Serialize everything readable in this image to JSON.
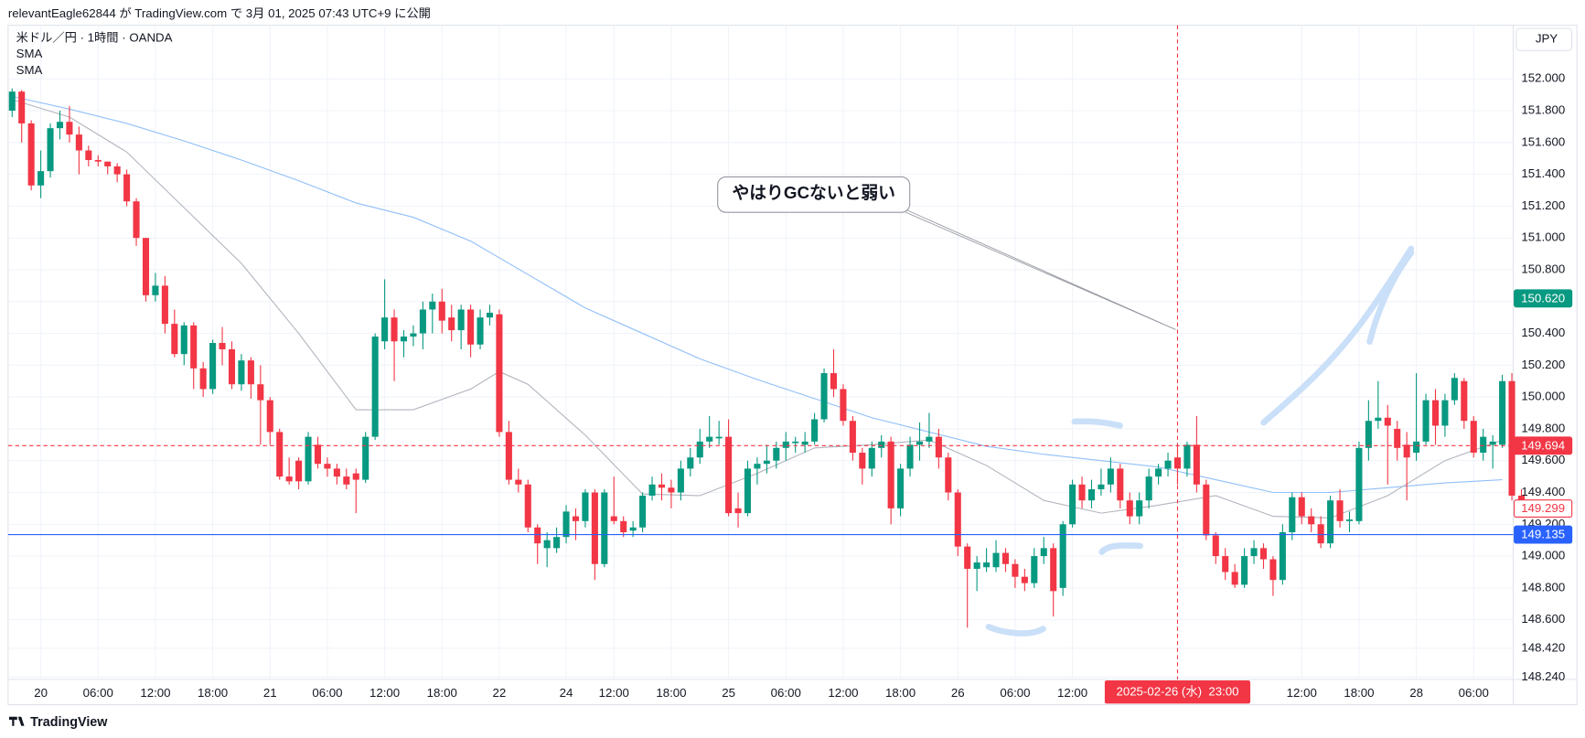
{
  "header": {
    "text": "relevantEagle62844 が TradingView.com で 3月 01, 2025 07:43 UTC+9 に公開"
  },
  "legend": {
    "symbol": "米ドル／円 · 1時間 · OANDA"
  },
  "currency_button": "JPY",
  "footer": {
    "brand": "TradingView"
  },
  "annotation": {
    "text": "やはりGCないと弱い"
  },
  "chart_data": {
    "type": "candlestick",
    "up_color": "#089981",
    "down_color": "#f23645",
    "ylim": [
      148.225,
      152.337
    ],
    "yticks": [
      {
        "value": 152,
        "label": "152.000"
      },
      {
        "value": 151.8,
        "label": "151.800"
      },
      {
        "value": 151.6,
        "label": "151.600"
      },
      {
        "value": 151.4,
        "label": "151.400"
      },
      {
        "value": 151.2,
        "label": "151.200"
      },
      {
        "value": 151,
        "label": "151.000"
      },
      {
        "value": 150.8,
        "label": "150.800"
      },
      {
        "value": 150.6,
        "label": "150.600"
      },
      {
        "value": 150.4,
        "label": "150.400"
      },
      {
        "value": 150.2,
        "label": "150.200"
      },
      {
        "value": 150,
        "label": "150.000"
      },
      {
        "value": 149.8,
        "label": "149.800"
      },
      {
        "value": 149.6,
        "label": "149.600"
      },
      {
        "value": 149.4,
        "label": "149.400"
      },
      {
        "value": 149.2,
        "label": "149.200"
      },
      {
        "value": 149,
        "label": "149.000"
      },
      {
        "value": 148.8,
        "label": "148.800"
      },
      {
        "value": 148.6,
        "label": "148.600"
      },
      {
        "value": 148.42,
        "label": "148.420"
      },
      {
        "value": 148.24,
        "label": "148.240"
      }
    ],
    "grid": true,
    "crosshair_category": 122,
    "categories": [
      null,
      null,
      null,
      "20",
      null,
      null,
      null,
      null,
      null,
      "06:00",
      null,
      null,
      null,
      null,
      null,
      "12:00",
      null,
      null,
      null,
      null,
      null,
      "18:00",
      null,
      null,
      null,
      null,
      null,
      "21",
      null,
      null,
      null,
      null,
      null,
      "06:00",
      null,
      null,
      null,
      null,
      null,
      "12:00",
      null,
      null,
      null,
      null,
      null,
      "18:00",
      null,
      null,
      null,
      null,
      null,
      "22",
      null,
      null,
      null,
      null,
      null,
      null,
      "24",
      null,
      null,
      null,
      null,
      "12:00",
      null,
      null,
      null,
      null,
      null,
      "18:00",
      null,
      null,
      null,
      null,
      null,
      "25",
      null,
      null,
      null,
      null,
      null,
      "06:00",
      null,
      null,
      null,
      null,
      null,
      "12:00",
      null,
      null,
      null,
      null,
      null,
      "18:00",
      null,
      null,
      null,
      null,
      null,
      "26",
      null,
      null,
      null,
      null,
      null,
      "06:00",
      null,
      null,
      null,
      null,
      null,
      "12:00",
      null,
      null,
      null,
      null,
      null,
      null,
      null,
      null,
      null,
      null,
      "2025-02-26 (水)  23:00",
      null,
      null,
      null,
      null,
      null,
      null,
      null,
      null,
      null,
      null,
      null,
      null,
      "12:00",
      null,
      null,
      null,
      null,
      null,
      "18:00",
      null,
      null,
      null,
      null,
      null,
      "28",
      null,
      null,
      null,
      null,
      null,
      "06:00",
      null,
      null,
      null,
      null,
      null
    ],
    "open": [
      151.8,
      151.92,
      151.72,
      151.33,
      151.42,
      151.69,
      151.73,
      151.65,
      151.55,
      151.49,
      151.48,
      151.45,
      151.4,
      151.23,
      151.0,
      150.64,
      150.7,
      150.46,
      150.27,
      150.45,
      150.18,
      150.05,
      150.34,
      150.3,
      150.08,
      150.23,
      150.08,
      149.98,
      149.78,
      149.5,
      149.6,
      149.47,
      149.7,
      149.58,
      149.55,
      149.5,
      149.52,
      149.48,
      149.75,
      150.35,
      150.5,
      150.35,
      150.38,
      150.4,
      150.55,
      150.6,
      150.5,
      150.42,
      150.55,
      150.33,
      150.5,
      150.52,
      149.78,
      149.48,
      149.45,
      149.18,
      149.05,
      149.05,
      149.12,
      149.25,
      149.22,
      149.4,
      148.95,
      149.25,
      149.22,
      149.16,
      149.18,
      149.38,
      149.45,
      149.43,
      149.4,
      149.55,
      149.62,
      149.72,
      149.74,
      149.75,
      149.3,
      149.27,
      149.55,
      149.58,
      149.6,
      149.68,
      149.71,
      149.7,
      149.72,
      149.86,
      150.15,
      150.05,
      149.85,
      149.65,
      149.55,
      149.68,
      149.72,
      149.3,
      149.55,
      149.7,
      149.72,
      149.75,
      149.62,
      149.4,
      149.06,
      148.92,
      148.93,
      148.93,
      149.02,
      148.95,
      148.87,
      148.83,
      149.0,
      149.05,
      148.8,
      149.2,
      149.45,
      149.35,
      149.42,
      149.45,
      149.55,
      149.35,
      149.25,
      149.35,
      149.5,
      149.55,
      149.62,
      149.55,
      149.7,
      149.45,
      149.13,
      149.0,
      148.9,
      148.82,
      149.0,
      149.05,
      148.98,
      148.85,
      149.15,
      149.37,
      149.25,
      149.2,
      149.08,
      149.35,
      149.22,
      149.22,
      149.68,
      149.85,
      149.87,
      149.8,
      149.7,
      149.65,
      149.72,
      149.98,
      149.82,
      149.98,
      150.1,
      149.85,
      149.65,
      149.7,
      149.7,
      150.1,
      149.38
    ],
    "high": [
      151.94,
      151.93,
      151.74,
      151.55,
      151.72,
      151.8,
      151.83,
      151.7,
      151.58,
      151.52,
      151.48,
      151.47,
      151.43,
      151.25,
      151.0,
      150.78,
      150.76,
      150.55,
      150.47,
      150.47,
      150.22,
      150.36,
      150.44,
      150.35,
      150.27,
      150.25,
      150.2,
      150.0,
      149.8,
      149.62,
      149.62,
      149.78,
      149.75,
      149.62,
      149.58,
      149.55,
      149.55,
      149.78,
      150.4,
      150.74,
      150.55,
      150.42,
      150.45,
      150.6,
      150.65,
      150.68,
      150.58,
      150.58,
      150.58,
      150.55,
      150.58,
      150.55,
      149.85,
      149.55,
      149.48,
      149.2,
      149.15,
      149.18,
      149.32,
      149.3,
      149.42,
      149.42,
      149.42,
      149.5,
      149.25,
      149.22,
      149.4,
      149.5,
      149.52,
      149.48,
      149.6,
      149.68,
      149.8,
      149.88,
      149.85,
      149.86,
      149.4,
      149.6,
      149.62,
      149.7,
      149.72,
      149.78,
      149.75,
      149.78,
      149.9,
      150.18,
      150.3,
      150.08,
      149.88,
      149.68,
      149.72,
      149.76,
      149.75,
      149.58,
      149.75,
      149.84,
      149.9,
      149.8,
      149.65,
      149.42,
      149.08,
      149.0,
      149.05,
      149.1,
      149.05,
      148.98,
      148.92,
      149.05,
      149.12,
      149.08,
      149.22,
      149.48,
      149.5,
      149.48,
      149.55,
      149.62,
      149.58,
      149.4,
      149.4,
      149.55,
      149.58,
      149.65,
      149.7,
      149.72,
      149.88,
      149.48,
      149.15,
      149.05,
      148.95,
      149.05,
      149.1,
      149.08,
      149.0,
      149.2,
      149.4,
      149.4,
      149.3,
      149.25,
      149.38,
      149.42,
      149.28,
      149.72,
      149.98,
      150.1,
      149.95,
      149.85,
      149.78,
      150.15,
      150.02,
      150.05,
      150.02,
      150.15,
      150.12,
      149.88,
      149.8,
      149.76,
      150.14,
      150.15,
      149.42
    ],
    "low": [
      151.76,
      151.6,
      151.3,
      151.25,
      151.38,
      151.62,
      151.6,
      151.4,
      151.45,
      151.45,
      151.4,
      151.35,
      151.2,
      150.95,
      150.6,
      150.6,
      150.4,
      150.25,
      150.2,
      150.05,
      150.0,
      150.02,
      150.2,
      150.05,
      150.04,
      149.99,
      149.7,
      149.7,
      149.48,
      149.45,
      149.42,
      149.45,
      149.55,
      149.5,
      149.45,
      149.42,
      149.27,
      149.46,
      149.73,
      150.3,
      150.1,
      150.25,
      150.32,
      150.3,
      150.4,
      150.4,
      150.35,
      150.3,
      150.25,
      150.3,
      150.45,
      149.75,
      149.45,
      149.4,
      149.15,
      148.95,
      148.93,
      149.02,
      149.08,
      149.1,
      149.18,
      148.85,
      148.93,
      149.2,
      149.12,
      149.12,
      149.15,
      149.35,
      149.35,
      149.3,
      149.35,
      149.5,
      149.58,
      149.68,
      149.7,
      149.25,
      149.18,
      149.25,
      149.45,
      149.52,
      149.55,
      149.6,
      149.65,
      149.65,
      149.7,
      149.84,
      150.0,
      149.82,
      149.6,
      149.45,
      149.5,
      149.62,
      149.2,
      149.25,
      149.5,
      149.6,
      149.68,
      149.55,
      149.35,
      149.0,
      148.55,
      148.78,
      148.9,
      148.9,
      148.9,
      148.8,
      148.78,
      148.8,
      148.95,
      148.62,
      148.75,
      149.18,
      149.3,
      149.3,
      149.38,
      149.4,
      149.3,
      149.2,
      149.2,
      149.3,
      149.45,
      149.5,
      149.45,
      149.5,
      149.4,
      149.1,
      148.95,
      148.85,
      148.8,
      148.8,
      148.95,
      148.92,
      148.75,
      148.82,
      149.1,
      149.2,
      149.15,
      149.05,
      149.05,
      149.18,
      149.15,
      149.2,
      149.6,
      149.8,
      149.45,
      149.6,
      149.35,
      149.6,
      149.7,
      149.7,
      149.75,
      149.95,
      149.8,
      149.62,
      149.6,
      149.55,
      149.68,
      149.35,
      149.28
    ],
    "close": [
      151.92,
      151.72,
      151.33,
      151.42,
      151.69,
      151.73,
      151.65,
      151.55,
      151.49,
      151.48,
      151.45,
      151.4,
      151.23,
      151.0,
      150.64,
      150.7,
      150.46,
      150.27,
      150.45,
      150.18,
      150.05,
      150.34,
      150.3,
      150.08,
      150.23,
      150.08,
      149.98,
      149.78,
      149.5,
      149.47,
      149.47,
      149.75,
      149.58,
      149.55,
      149.5,
      149.45,
      149.48,
      149.75,
      150.38,
      150.5,
      150.35,
      150.38,
      150.4,
      150.55,
      150.6,
      150.48,
      150.42,
      150.55,
      150.33,
      150.5,
      150.53,
      149.78,
      149.48,
      149.45,
      149.18,
      149.08,
      149.1,
      149.12,
      149.28,
      149.22,
      149.4,
      148.95,
      149.4,
      149.22,
      149.15,
      149.18,
      149.38,
      149.45,
      149.43,
      149.4,
      149.55,
      149.62,
      149.72,
      149.75,
      149.75,
      149.27,
      149.27,
      149.55,
      149.58,
      149.6,
      149.68,
      149.72,
      149.72,
      149.72,
      149.86,
      150.15,
      150.05,
      149.85,
      149.65,
      149.55,
      149.68,
      149.72,
      149.3,
      149.55,
      149.7,
      149.72,
      149.75,
      149.62,
      149.4,
      149.06,
      148.92,
      148.96,
      148.96,
      149.02,
      148.95,
      148.87,
      148.83,
      149.0,
      149.05,
      148.78,
      149.2,
      149.45,
      149.35,
      149.42,
      149.45,
      149.55,
      149.35,
      149.25,
      149.35,
      149.5,
      149.55,
      149.6,
      149.55,
      149.7,
      149.45,
      149.13,
      149.0,
      148.9,
      148.82,
      149.0,
      149.05,
      148.98,
      148.85,
      149.15,
      149.37,
      149.25,
      149.2,
      149.08,
      149.35,
      149.22,
      149.23,
      149.68,
      149.85,
      149.87,
      149.82,
      149.68,
      149.62,
      149.72,
      149.98,
      149.82,
      149.98,
      150.12,
      149.85,
      149.65,
      149.75,
      149.72,
      150.1,
      149.38,
      149.299
    ],
    "series": [
      {
        "name": "SMA",
        "color": "#90bff9",
        "x": [
          0,
          6,
          12,
          18,
          24,
          30,
          36,
          42,
          48,
          54,
          60,
          66,
          72,
          78,
          84,
          90,
          96,
          102,
          108,
          114,
          120,
          126,
          132,
          138,
          144,
          150,
          156
        ],
        "values": [
          151.89,
          151.81,
          151.72,
          151.61,
          151.49,
          151.36,
          151.22,
          151.13,
          150.98,
          150.77,
          150.56,
          150.4,
          150.24,
          150.11,
          149.99,
          149.87,
          149.78,
          149.69,
          149.64,
          149.6,
          149.56,
          149.48,
          149.4,
          149.4,
          149.43,
          149.46,
          149.48
        ]
      },
      {
        "name": "SMA",
        "color": "#b2b5be",
        "x": [
          0,
          6,
          12,
          18,
          24,
          30,
          36,
          42,
          48,
          51,
          54,
          60,
          66,
          72,
          78,
          84,
          90,
          96,
          102,
          108,
          114,
          120,
          126,
          132,
          138,
          144,
          150,
          156
        ],
        "values": [
          151.87,
          151.76,
          151.54,
          151.19,
          150.84,
          150.4,
          149.92,
          149.92,
          150.05,
          150.16,
          150.08,
          149.76,
          149.39,
          149.38,
          149.52,
          149.68,
          149.7,
          149.73,
          149.57,
          149.35,
          149.27,
          149.32,
          149.38,
          149.25,
          149.24,
          149.38,
          149.6,
          149.73
        ]
      }
    ],
    "price_labels": [
      {
        "value": 150.62,
        "label": "150.620",
        "color": "#089981",
        "style": "filled"
      },
      {
        "value": 149.694,
        "label": "149.694",
        "color": "#f23645",
        "style": "filled",
        "line": "dashed"
      },
      {
        "value": 149.299,
        "label": "149.299",
        "color": "#f23645",
        "style": "outline"
      },
      {
        "value": 149.135,
        "label": "149.135",
        "color": "#2962ff",
        "style": "filled",
        "line": "solid"
      }
    ]
  }
}
